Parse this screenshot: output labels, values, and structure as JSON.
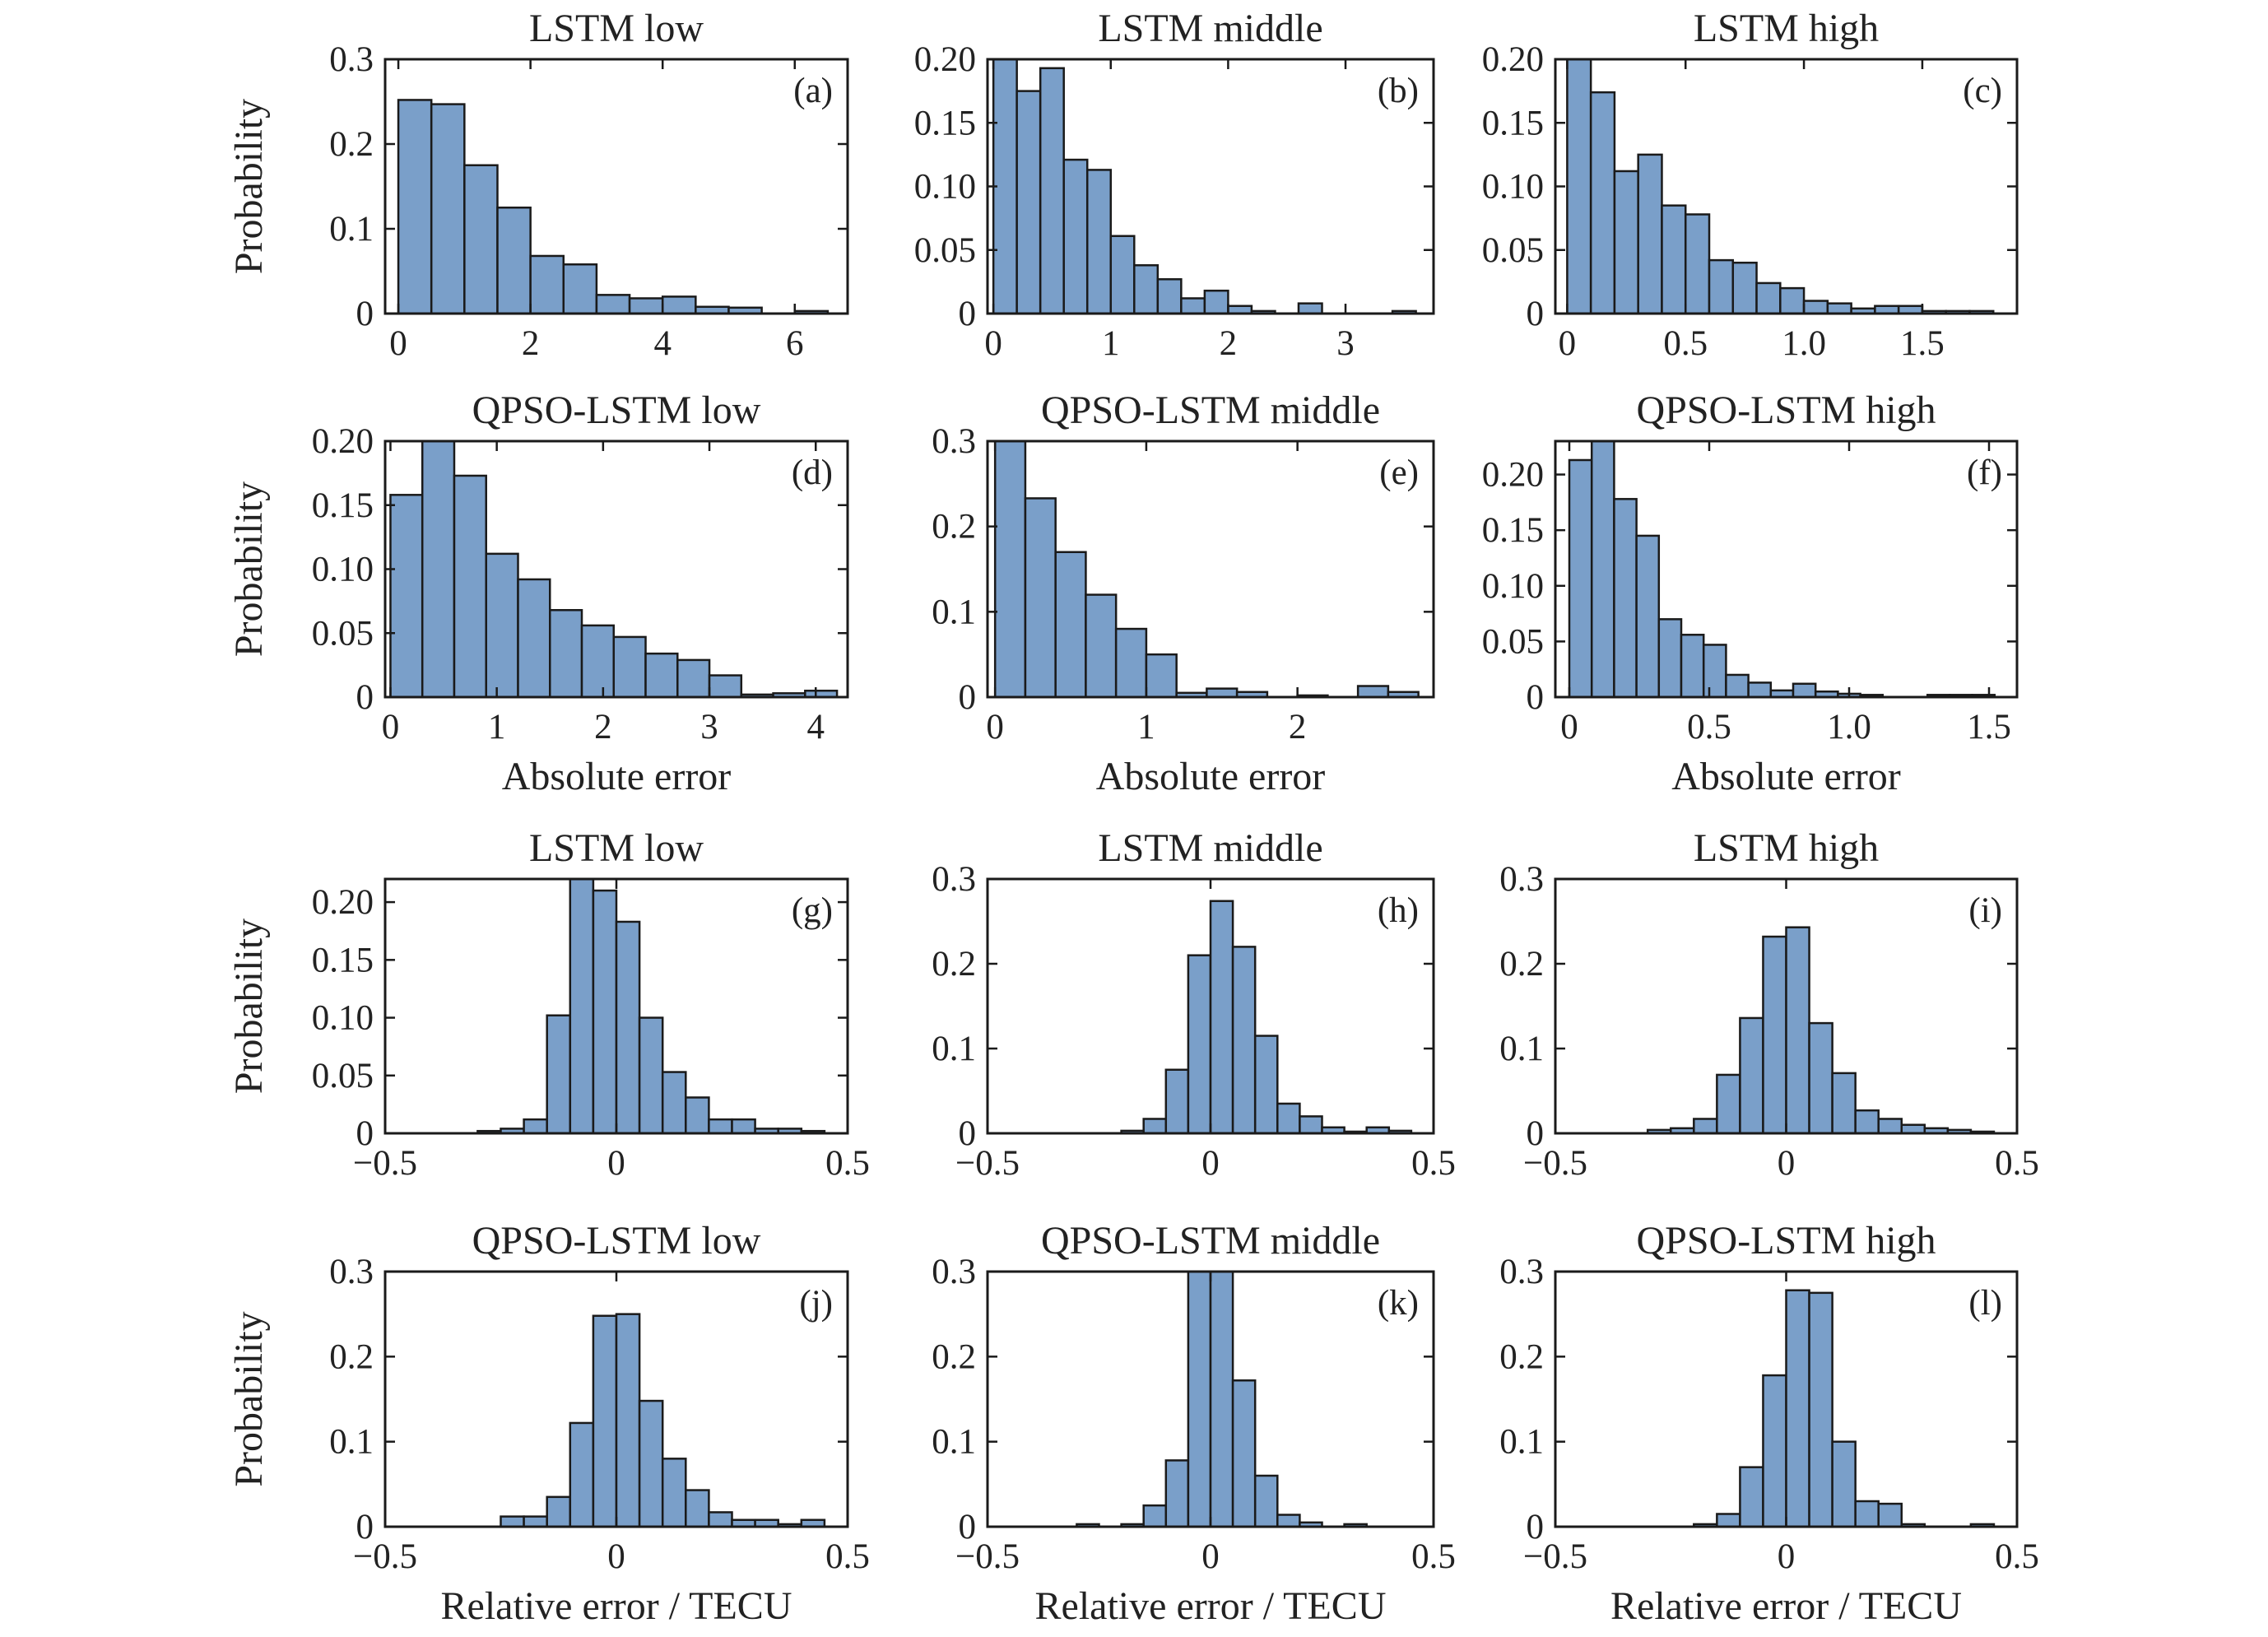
{
  "figure": {
    "colors": {
      "bar_fill": "#7a9fc9",
      "bar_edge": "#1a1a1a",
      "axes": "#1a1a1a",
      "text": "#222222"
    },
    "ylabel": "Probability",
    "xlabel_abs": "Absolute error",
    "xlabel_rel": "Relative error / TECU"
  },
  "chart_data": [
    {
      "type": "bar",
      "panel": "(a)",
      "title": "LSTM low",
      "xlabel": "",
      "ylabel": "Probability",
      "xlim": [
        -0.2,
        6.8
      ],
      "ylim": [
        0,
        0.3
      ],
      "xticks": [
        0,
        2,
        4,
        6
      ],
      "xtick_labels": [
        "0",
        "2",
        "4",
        "6"
      ],
      "yticks": [
        0,
        0.1,
        0.2,
        0.3
      ],
      "ytick_labels": [
        "0",
        "0.1",
        "0.2",
        "0.3"
      ],
      "bin_edges": [
        0,
        0.5,
        1.0,
        1.5,
        2.0,
        2.5,
        3.0,
        3.5,
        4.0,
        4.5,
        5.0,
        5.5,
        6.0,
        6.5
      ],
      "values": [
        0.252,
        0.247,
        0.175,
        0.125,
        0.068,
        0.058,
        0.022,
        0.018,
        0.02,
        0.008,
        0.007,
        0,
        0.003
      ]
    },
    {
      "type": "bar",
      "panel": "(b)",
      "title": "LSTM middle",
      "xlabel": "",
      "ylabel": "",
      "xlim": [
        -0.05,
        3.75
      ],
      "ylim": [
        0,
        0.2
      ],
      "xticks": [
        0,
        1,
        2,
        3
      ],
      "xtick_labels": [
        "0",
        "1",
        "2",
        "3"
      ],
      "yticks": [
        0,
        0.05,
        0.1,
        0.15,
        0.2
      ],
      "ytick_labels": [
        "0",
        "0.05",
        "0.10",
        "0.15",
        "0.20"
      ],
      "bin_edges": [
        0,
        0.2,
        0.4,
        0.6,
        0.8,
        1.0,
        1.2,
        1.4,
        1.6,
        1.8,
        2.0,
        2.2,
        2.4,
        2.6,
        2.8,
        3.0,
        3.2,
        3.4,
        3.6
      ],
      "values": [
        0.2,
        0.175,
        0.193,
        0.121,
        0.113,
        0.061,
        0.038,
        0.027,
        0.012,
        0.018,
        0.006,
        0.002,
        0,
        0.008,
        0,
        0,
        0,
        0.002
      ]
    },
    {
      "type": "bar",
      "panel": "(c)",
      "title": "LSTM high",
      "xlabel": "",
      "ylabel": "",
      "xlim": [
        -0.05,
        1.9
      ],
      "ylim": [
        0,
        0.2
      ],
      "xticks": [
        0,
        0.5,
        1.0,
        1.5
      ],
      "xtick_labels": [
        "0",
        "0.5",
        "1.0",
        "1.5"
      ],
      "yticks": [
        0,
        0.05,
        0.1,
        0.15,
        0.2
      ],
      "ytick_labels": [
        "0",
        "0.05",
        "0.10",
        "0.15",
        "0.20"
      ],
      "bin_edges": [
        0,
        0.1,
        0.2,
        0.3,
        0.4,
        0.5,
        0.6,
        0.7,
        0.8,
        0.9,
        1.0,
        1.1,
        1.2,
        1.3,
        1.4,
        1.5,
        1.6,
        1.7,
        1.8
      ],
      "values": [
        0.2,
        0.174,
        0.112,
        0.125,
        0.085,
        0.078,
        0.042,
        0.04,
        0.024,
        0.02,
        0.01,
        0.008,
        0.004,
        0.006,
        0.006,
        0.002,
        0.002,
        0.002
      ]
    },
    {
      "type": "bar",
      "panel": "(d)",
      "title": "QPSO-LSTM low",
      "xlabel": "Absolute error",
      "ylabel": "Probability",
      "xlim": [
        -0.05,
        4.3
      ],
      "ylim": [
        0,
        0.2
      ],
      "xticks": [
        0,
        1,
        2,
        3,
        4
      ],
      "xtick_labels": [
        "0",
        "1",
        "2",
        "3",
        "4"
      ],
      "yticks": [
        0,
        0.05,
        0.1,
        0.15,
        0.2
      ],
      "ytick_labels": [
        "0",
        "0.05",
        "0.10",
        "0.15",
        "0.20"
      ],
      "bin_edges": [
        0,
        0.3,
        0.6,
        0.9,
        1.2,
        1.5,
        1.8,
        2.1,
        2.4,
        2.7,
        3.0,
        3.3,
        3.6,
        3.9,
        4.2
      ],
      "values": [
        0.158,
        0.205,
        0.173,
        0.112,
        0.092,
        0.068,
        0.056,
        0.047,
        0.034,
        0.029,
        0.017,
        0.002,
        0.003,
        0.005
      ]
    },
    {
      "type": "bar",
      "panel": "(e)",
      "title": "QPSO-LSTM middle",
      "xlabel": "Absolute error",
      "ylabel": "",
      "xlim": [
        -0.05,
        2.9
      ],
      "ylim": [
        0,
        0.3
      ],
      "xticks": [
        0,
        1,
        2
      ],
      "xtick_labels": [
        "0",
        "1",
        "2"
      ],
      "yticks": [
        0,
        0.1,
        0.2,
        0.3
      ],
      "ytick_labels": [
        "0",
        "0.1",
        "0.2",
        "0.3"
      ],
      "bin_edges": [
        0,
        0.2,
        0.4,
        0.6,
        0.8,
        1.0,
        1.2,
        1.4,
        1.6,
        1.8,
        2.0,
        2.2,
        2.4,
        2.6,
        2.8
      ],
      "values": [
        0.3,
        0.233,
        0.17,
        0.12,
        0.08,
        0.05,
        0.005,
        0.01,
        0.006,
        0,
        0.002,
        0,
        0.013,
        0.006
      ]
    },
    {
      "type": "bar",
      "panel": "(f)",
      "title": "QPSO-LSTM high",
      "xlabel": "Absolute error",
      "ylabel": "",
      "xlim": [
        -0.05,
        1.6
      ],
      "ylim": [
        0,
        0.23
      ],
      "xticks": [
        0,
        0.5,
        1.0,
        1.5
      ],
      "xtick_labels": [
        "0",
        "0.5",
        "1.0",
        "1.5"
      ],
      "yticks": [
        0,
        0.05,
        0.1,
        0.15,
        0.2
      ],
      "ytick_labels": [
        "0",
        "0.05",
        "0.10",
        "0.15",
        "0.20"
      ],
      "bin_edges": [
        0,
        0.08,
        0.16,
        0.24,
        0.32,
        0.4,
        0.48,
        0.56,
        0.64,
        0.72,
        0.8,
        0.88,
        0.96,
        1.04,
        1.12,
        1.2,
        1.28,
        1.36,
        1.44,
        1.52
      ],
      "values": [
        0.213,
        0.23,
        0.178,
        0.145,
        0.07,
        0.056,
        0.047,
        0.02,
        0.013,
        0.006,
        0.012,
        0.005,
        0.003,
        0.002,
        0,
        0,
        0.002,
        0.002,
        0.002
      ]
    },
    {
      "type": "bar",
      "panel": "(g)",
      "title": "LSTM low",
      "xlabel": "",
      "ylabel": "Probability",
      "xlim": [
        -0.5,
        0.5
      ],
      "ylim": [
        0,
        0.22
      ],
      "xticks": [
        -0.5,
        0,
        0.5
      ],
      "xtick_labels": [
        "−0.5",
        "0",
        "0.5"
      ],
      "yticks": [
        0,
        0.05,
        0.1,
        0.15,
        0.2
      ],
      "ytick_labels": [
        "0",
        "0.05",
        "0.10",
        "0.15",
        "0.20"
      ],
      "bin_edges": [
        -0.45,
        -0.4,
        -0.35,
        -0.3,
        -0.25,
        -0.2,
        -0.15,
        -0.1,
        -0.05,
        0,
        0.05,
        0.1,
        0.15,
        0.2,
        0.25,
        0.3,
        0.35,
        0.4,
        0.45
      ],
      "values": [
        0,
        0,
        0,
        0.002,
        0.004,
        0.012,
        0.102,
        0.22,
        0.21,
        0.183,
        0.1,
        0.053,
        0.031,
        0.012,
        0.012,
        0.004,
        0.004,
        0.002
      ]
    },
    {
      "type": "bar",
      "panel": "(h)",
      "title": "LSTM middle",
      "xlabel": "",
      "ylabel": "",
      "xlim": [
        -0.5,
        0.5
      ],
      "ylim": [
        0,
        0.3
      ],
      "xticks": [
        -0.5,
        0,
        0.5
      ],
      "xtick_labels": [
        "−0.5",
        "0",
        "0.5"
      ],
      "yticks": [
        0,
        0.1,
        0.2,
        0.3
      ],
      "ytick_labels": [
        "0",
        "0.1",
        "0.2",
        "0.3"
      ],
      "bin_edges": [
        -0.45,
        -0.4,
        -0.35,
        -0.3,
        -0.25,
        -0.2,
        -0.15,
        -0.1,
        -0.05,
        0,
        0.05,
        0.1,
        0.15,
        0.2,
        0.25,
        0.3,
        0.35,
        0.4,
        0.45
      ],
      "values": [
        0,
        0,
        0,
        0,
        0,
        0.003,
        0.017,
        0.075,
        0.21,
        0.274,
        0.22,
        0.115,
        0.035,
        0.02,
        0.007,
        0.002,
        0.007,
        0.003
      ]
    },
    {
      "type": "bar",
      "panel": "(i)",
      "title": "LSTM high",
      "xlabel": "",
      "ylabel": "",
      "xlim": [
        -0.5,
        0.5
      ],
      "ylim": [
        0,
        0.3
      ],
      "xticks": [
        -0.5,
        0,
        0.5
      ],
      "xtick_labels": [
        "−0.5",
        "0",
        "0.5"
      ],
      "yticks": [
        0,
        0.1,
        0.2,
        0.3
      ],
      "ytick_labels": [
        "0",
        "0.1",
        "0.2",
        "0.3"
      ],
      "bin_edges": [
        -0.45,
        -0.4,
        -0.35,
        -0.3,
        -0.25,
        -0.2,
        -0.15,
        -0.1,
        -0.05,
        0,
        0.05,
        0.1,
        0.15,
        0.2,
        0.25,
        0.3,
        0.35,
        0.4,
        0.45
      ],
      "values": [
        0,
        0,
        0,
        0.004,
        0.006,
        0.017,
        0.069,
        0.136,
        0.232,
        0.243,
        0.13,
        0.071,
        0.027,
        0.017,
        0.01,
        0.006,
        0.004,
        0.002
      ]
    },
    {
      "type": "bar",
      "panel": "(j)",
      "title": "QPSO-LSTM low",
      "xlabel": "Relative error / TECU",
      "ylabel": "Probability",
      "xlim": [
        -0.5,
        0.5
      ],
      "ylim": [
        0,
        0.3
      ],
      "xticks": [
        -0.5,
        0,
        0.5
      ],
      "xtick_labels": [
        "−0.5",
        "0",
        "0.5"
      ],
      "yticks": [
        0,
        0.1,
        0.2,
        0.3
      ],
      "ytick_labels": [
        "0",
        "0.1",
        "0.2",
        "0.3"
      ],
      "bin_edges": [
        -0.45,
        -0.4,
        -0.35,
        -0.3,
        -0.25,
        -0.2,
        -0.15,
        -0.1,
        -0.05,
        0,
        0.05,
        0.1,
        0.15,
        0.2,
        0.25,
        0.3,
        0.35,
        0.4,
        0.45
      ],
      "values": [
        0,
        0,
        0,
        0,
        0.012,
        0.012,
        0.035,
        0.122,
        0.248,
        0.25,
        0.148,
        0.08,
        0.043,
        0.017,
        0.008,
        0.008,
        0.003,
        0.008
      ]
    },
    {
      "type": "bar",
      "panel": "(k)",
      "title": "QPSO-LSTM middle",
      "xlabel": "Relative error / TECU",
      "ylabel": "",
      "xlim": [
        -0.5,
        0.5
      ],
      "ylim": [
        0,
        0.3
      ],
      "xticks": [
        -0.5,
        0,
        0.5
      ],
      "xtick_labels": [
        "−0.5",
        "0",
        "0.5"
      ],
      "yticks": [
        0,
        0.1,
        0.2,
        0.3
      ],
      "ytick_labels": [
        "0",
        "0.1",
        "0.2",
        "0.3"
      ],
      "bin_edges": [
        -0.45,
        -0.4,
        -0.35,
        -0.3,
        -0.25,
        -0.2,
        -0.15,
        -0.1,
        -0.05,
        0,
        0.05,
        0.1,
        0.15,
        0.2,
        0.25,
        0.3,
        0.35,
        0.4,
        0.45
      ],
      "values": [
        0,
        0,
        0,
        0.003,
        0,
        0.003,
        0.025,
        0.078,
        0.3,
        0.31,
        0.172,
        0.06,
        0.014,
        0.005,
        0,
        0.003,
        0,
        0
      ]
    },
    {
      "type": "bar",
      "panel": "(l)",
      "title": "QPSO-LSTM high",
      "xlabel": "Relative error / TECU",
      "ylabel": "",
      "xlim": [
        -0.5,
        0.5
      ],
      "ylim": [
        0,
        0.3
      ],
      "xticks": [
        -0.5,
        0,
        0.5
      ],
      "xtick_labels": [
        "−0.5",
        "0",
        "0.5"
      ],
      "yticks": [
        0,
        0.1,
        0.2,
        0.3
      ],
      "ytick_labels": [
        "0",
        "0.1",
        "0.2",
        "0.3"
      ],
      "bin_edges": [
        -0.45,
        -0.4,
        -0.35,
        -0.3,
        -0.25,
        -0.2,
        -0.15,
        -0.1,
        -0.05,
        0,
        0.05,
        0.1,
        0.15,
        0.2,
        0.25,
        0.3,
        0.35,
        0.4,
        0.45
      ],
      "values": [
        0,
        0,
        0,
        0,
        0,
        0.003,
        0.015,
        0.07,
        0.178,
        0.278,
        0.275,
        0.1,
        0.03,
        0.027,
        0.003,
        0,
        0,
        0.003
      ]
    }
  ]
}
